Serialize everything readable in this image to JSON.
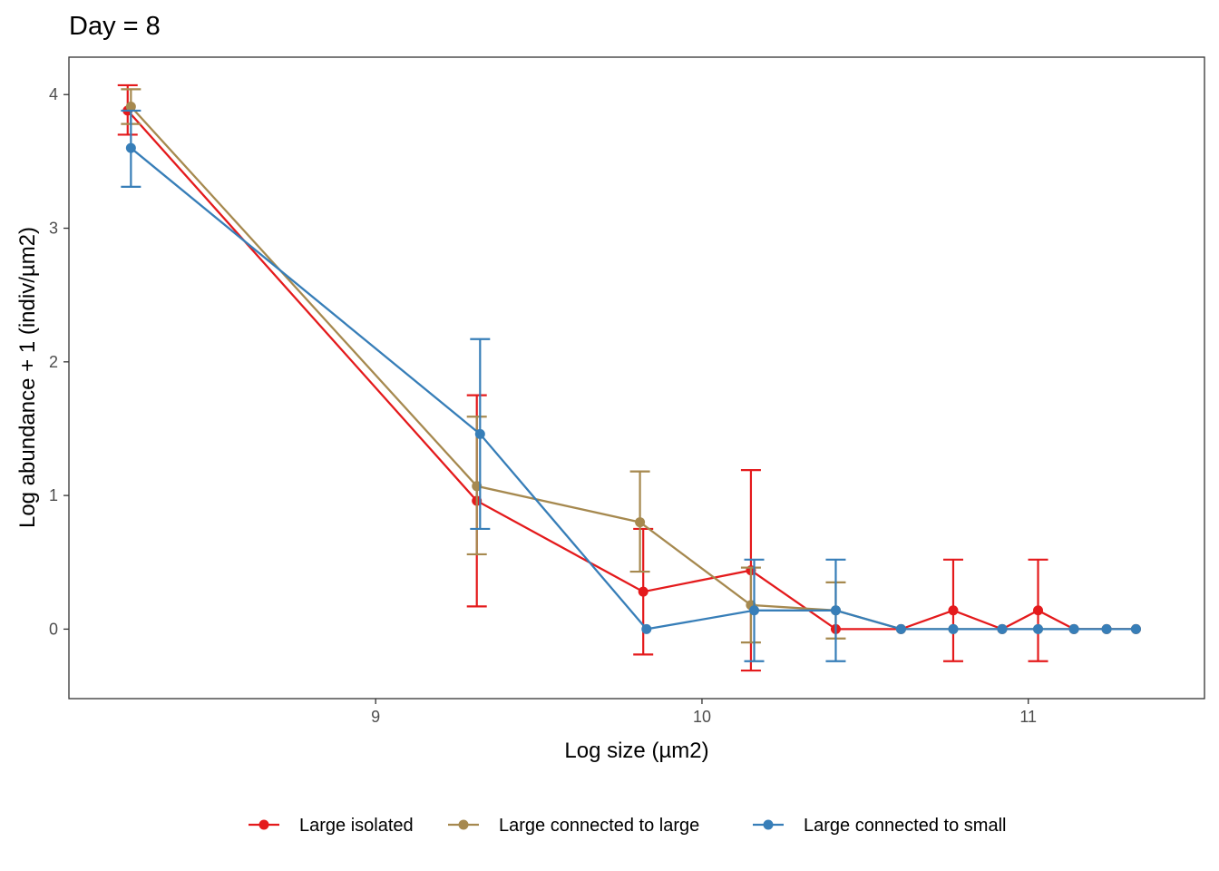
{
  "chart_data": {
    "type": "line",
    "title": "Day = 8",
    "xlabel": "Log size (µm2)",
    "ylabel": "Log abundance + 1 (indiv/µm2)",
    "xlim": [
      8.06,
      11.54
    ],
    "ylim": [
      -0.52,
      4.28
    ],
    "xticks": [
      9,
      10,
      11
    ],
    "yticks": [
      0,
      1,
      2,
      3,
      4
    ],
    "grid": false,
    "legend_position": "bottom",
    "error_bars": true,
    "series": [
      {
        "name": "Large isolated",
        "color": "#e41a1c",
        "x": [
          8.24,
          9.31,
          9.82,
          10.15,
          10.41,
          10.61,
          10.77,
          10.92,
          11.03,
          11.14,
          11.24,
          11.33
        ],
        "y": [
          3.88,
          0.96,
          0.28,
          0.44,
          0.0,
          0.0,
          0.14,
          0.0,
          0.14,
          0.0,
          0.0,
          0.0
        ],
        "ymin": [
          3.7,
          0.17,
          -0.19,
          -0.31,
          null,
          null,
          -0.24,
          null,
          -0.24,
          null,
          null,
          null
        ],
        "ymax": [
          4.07,
          1.75,
          0.75,
          1.19,
          null,
          null,
          0.52,
          null,
          0.52,
          null,
          null,
          null
        ]
      },
      {
        "name": "Large connected to large",
        "color": "#a6894f",
        "x": [
          8.25,
          9.31,
          9.81,
          10.15,
          10.41,
          10.61,
          10.77,
          10.92,
          11.03,
          11.14,
          11.24,
          11.33
        ],
        "y": [
          3.91,
          1.07,
          0.8,
          0.18,
          0.14,
          0.0,
          0.0,
          0.0,
          0.0,
          0.0,
          0.0,
          0.0
        ],
        "ymin": [
          3.78,
          0.56,
          0.43,
          -0.1,
          -0.07,
          null,
          null,
          null,
          null,
          null,
          null,
          null
        ],
        "ymax": [
          4.04,
          1.59,
          1.18,
          0.46,
          0.35,
          null,
          null,
          null,
          null,
          null,
          null,
          null
        ]
      },
      {
        "name": "Large connected to small",
        "color": "#377eb8",
        "x": [
          8.25,
          9.32,
          9.83,
          10.16,
          10.41,
          10.61,
          10.77,
          10.92,
          11.03,
          11.14,
          11.24,
          11.33
        ],
        "y": [
          3.6,
          1.46,
          0.0,
          0.14,
          0.14,
          0.0,
          0.0,
          0.0,
          0.0,
          0.0,
          0.0,
          0.0
        ],
        "ymin": [
          3.31,
          0.75,
          null,
          -0.24,
          -0.24,
          null,
          null,
          null,
          null,
          null,
          null,
          null
        ],
        "ymax": [
          3.88,
          2.17,
          null,
          0.52,
          0.52,
          null,
          null,
          null,
          null,
          null,
          null,
          null
        ]
      }
    ]
  }
}
